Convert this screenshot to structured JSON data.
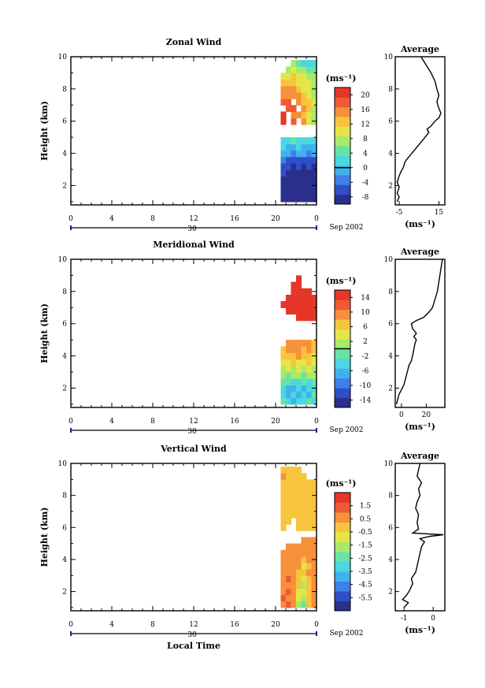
{
  "figure": {
    "x_axis_title": "Local Time",
    "y_axis_title": "Height (km)",
    "date_label": "Sep 2002",
    "day_label": "30",
    "unit_label": "(ms⁻¹)"
  },
  "chart_data": [
    {
      "type": "heatmap",
      "title": "Zonal Wind",
      "xlabel": "",
      "ylabel": "Height (km)",
      "x_ticks": [
        "0",
        "4",
        "8",
        "12",
        "16",
        "20",
        "0"
      ],
      "xlim": [
        0,
        24
      ],
      "y_ticks": [
        "2",
        "4",
        "6",
        "8",
        "10"
      ],
      "ylim": [
        0.8,
        10
      ],
      "data_x_range": [
        20.5,
        24
      ],
      "colorbar": {
        "unit": "(ms⁻¹)",
        "ticks": [
          "20",
          "16",
          "12",
          "8",
          "4",
          "0",
          "-4",
          "-8"
        ],
        "range": [
          -10,
          22
        ],
        "zero_line": true
      },
      "profile": {
        "title": "Average",
        "xlabel": "(ms⁻¹)",
        "x_ticks": [
          "-5",
          "15"
        ],
        "xlim": [
          -7,
          18
        ],
        "y_ticks": [
          "2",
          "4",
          "6",
          "8",
          "10"
        ],
        "points": [
          [
            -6,
            1.0
          ],
          [
            -5,
            1.3
          ],
          [
            -6,
            1.5
          ],
          [
            -5,
            1.9
          ],
          [
            -6,
            2.2
          ],
          [
            -5,
            2.6
          ],
          [
            -4,
            2.9
          ],
          [
            -3,
            3.1
          ],
          [
            -2,
            3.5
          ],
          [
            0,
            3.8
          ],
          [
            2,
            4.1
          ],
          [
            4,
            4.4
          ],
          [
            6,
            4.7
          ],
          [
            8,
            5.0
          ],
          [
            10,
            5.3
          ],
          [
            9,
            5.5
          ],
          [
            11,
            5.7
          ],
          [
            13,
            6.0
          ],
          [
            15,
            6.2
          ],
          [
            16,
            6.5
          ],
          [
            15,
            6.8
          ],
          [
            14,
            7.2
          ],
          [
            15,
            7.6
          ],
          [
            14,
            8.0
          ],
          [
            13,
            8.5
          ],
          [
            11,
            9.0
          ],
          [
            9,
            9.4
          ],
          [
            7,
            9.8
          ],
          [
            6,
            10.0
          ]
        ]
      },
      "heatmap": {
        "height_rows": [
          1.2,
          1.6,
          2.0,
          2.4,
          2.8,
          3.2,
          3.6,
          4.0,
          4.4,
          4.8,
          5.2,
          5.6,
          6.0,
          6.4,
          6.8,
          7.2,
          7.6,
          8.0,
          8.4,
          8.8,
          9.2,
          9.6
        ],
        "values": [
          [
            -8,
            -9,
            -8,
            -9,
            -8,
            -9,
            -8
          ],
          [
            -8,
            -8,
            -9,
            -8,
            -9,
            -8,
            -9
          ],
          [
            -9,
            -8,
            -8,
            -9,
            -8,
            -8,
            -8
          ],
          [
            -8,
            -9,
            -8,
            -8,
            -9,
            -8,
            -9
          ],
          [
            -7,
            -8,
            -9,
            -8,
            -8,
            -9,
            -8
          ],
          [
            -6,
            -7,
            -8,
            -7,
            -8,
            -7,
            -8
          ],
          [
            -4,
            -5,
            -6,
            -5,
            -6,
            -5,
            -6
          ],
          [
            -1,
            -2,
            -3,
            -2,
            -2,
            -3,
            -2
          ],
          [
            1,
            0,
            -1,
            1,
            0,
            -1,
            0
          ],
          [
            3,
            2,
            4,
            2,
            3,
            2,
            3
          ],
          [
            null,
            null,
            null,
            null,
            null,
            null,
            null
          ],
          [
            null,
            null,
            null,
            null,
            null,
            null,
            null
          ],
          [
            22,
            null,
            18,
            null,
            14,
            10,
            8
          ],
          [
            20,
            null,
            16,
            14,
            12,
            10,
            8
          ],
          [
            null,
            18,
            17,
            null,
            14,
            12,
            8
          ],
          [
            18,
            18,
            null,
            14,
            13,
            12,
            10
          ],
          [
            16,
            16,
            15,
            14,
            12,
            10,
            8
          ],
          [
            14,
            15,
            14,
            12,
            11,
            9,
            8
          ],
          [
            12,
            12,
            13,
            11,
            10,
            9,
            8
          ],
          [
            10,
            11,
            12,
            10,
            9,
            8,
            7
          ],
          [
            null,
            8,
            10,
            8,
            6,
            5,
            4
          ],
          [
            null,
            null,
            6,
            4,
            3,
            2,
            2
          ]
        ]
      }
    },
    {
      "type": "heatmap",
      "title": "Meridional Wind",
      "xlabel": "",
      "ylabel": "Height (km)",
      "x_ticks": [
        "0",
        "4",
        "8",
        "12",
        "16",
        "20",
        "0"
      ],
      "xlim": [
        0,
        24
      ],
      "y_ticks": [
        "2",
        "4",
        "6",
        "8",
        "10"
      ],
      "ylim": [
        0.8,
        10
      ],
      "data_x_range": [
        20.5,
        24
      ],
      "colorbar": {
        "unit": "(ms⁻¹)",
        "ticks": [
          "14",
          "10",
          "6",
          "2",
          "-2",
          "-6",
          "-10",
          "-14"
        ],
        "range": [
          -16,
          16
        ],
        "zero_line": true
      },
      "profile": {
        "title": "Average",
        "xlabel": "(ms⁻¹)",
        "x_ticks": [
          "0",
          "20"
        ],
        "xlim": [
          -5,
          35
        ],
        "y_ticks": [
          "2",
          "4",
          "6",
          "8",
          "10"
        ],
        "points": [
          [
            -4,
            1.0
          ],
          [
            -3,
            1.3
          ],
          [
            -2,
            1.6
          ],
          [
            0,
            1.9
          ],
          [
            2,
            2.2
          ],
          [
            3,
            2.5
          ],
          [
            4,
            2.8
          ],
          [
            5,
            3.1
          ],
          [
            6,
            3.4
          ],
          [
            8,
            3.7
          ],
          [
            9,
            4.0
          ],
          [
            10,
            4.4
          ],
          [
            11,
            4.8
          ],
          [
            12,
            5.0
          ],
          [
            10,
            5.2
          ],
          [
            12,
            5.4
          ],
          [
            9,
            5.7
          ],
          [
            8,
            6.0
          ],
          [
            12,
            6.2
          ],
          [
            18,
            6.4
          ],
          [
            22,
            6.7
          ],
          [
            25,
            7.0
          ],
          [
            27,
            7.5
          ],
          [
            29,
            8.0
          ],
          [
            30,
            8.5
          ],
          [
            31,
            9.0
          ],
          [
            32,
            9.5
          ],
          [
            33,
            10.0
          ]
        ]
      },
      "heatmap": {
        "height_rows": [
          1.2,
          1.6,
          2.0,
          2.4,
          2.8,
          3.2,
          3.6,
          4.0,
          4.4,
          4.8,
          5.2,
          5.6,
          6.0,
          6.4,
          6.8,
          7.2,
          7.6,
          8.0,
          8.4,
          8.8
        ],
        "values": [
          [
            -2,
            -4,
            -6,
            -3,
            -5,
            -2,
            -4
          ],
          [
            -4,
            -8,
            -5,
            -6,
            -3,
            -7,
            -2
          ],
          [
            -3,
            -6,
            -8,
            -4,
            -6,
            -5,
            -3
          ],
          [
            -1,
            -2,
            -4,
            -3,
            -1,
            -4,
            -2
          ],
          [
            1,
            -1,
            2,
            0,
            -2,
            1,
            0
          ],
          [
            2,
            3,
            1,
            4,
            2,
            3,
            1
          ],
          [
            4,
            5,
            6,
            5,
            4,
            6,
            5
          ],
          [
            6,
            7,
            6,
            8,
            7,
            6,
            5
          ],
          [
            7,
            8,
            9,
            8,
            7,
            8,
            6
          ],
          [
            null,
            9,
            10,
            9,
            8,
            9,
            7
          ],
          [
            null,
            null,
            null,
            null,
            null,
            null,
            null
          ],
          [
            null,
            null,
            null,
            null,
            null,
            null,
            null
          ],
          [
            null,
            null,
            null,
            null,
            null,
            null,
            null
          ],
          [
            null,
            null,
            null,
            16,
            17,
            16,
            15
          ],
          [
            null,
            17,
            16,
            17,
            18,
            17,
            16
          ],
          [
            16,
            17,
            18,
            17,
            16,
            17,
            17
          ],
          [
            null,
            16,
            17,
            18,
            17,
            16,
            17
          ],
          [
            null,
            null,
            17,
            16,
            17,
            16,
            null
          ],
          [
            null,
            null,
            16,
            17,
            null,
            null,
            null
          ],
          [
            null,
            null,
            null,
            16,
            null,
            null,
            null
          ]
        ]
      }
    },
    {
      "type": "heatmap",
      "title": "Vertical Wind",
      "xlabel": "Local Time",
      "ylabel": "Height (km)",
      "x_ticks": [
        "0",
        "4",
        "8",
        "12",
        "16",
        "20",
        "0"
      ],
      "xlim": [
        0,
        24
      ],
      "y_ticks": [
        "2",
        "4",
        "6",
        "8",
        "10"
      ],
      "ylim": [
        0.8,
        10
      ],
      "data_x_range": [
        20.5,
        24
      ],
      "colorbar": {
        "unit": "(ms⁻¹)",
        "ticks": [
          "1.5",
          "0.5",
          "-0.5",
          "-1.5",
          "-2.5",
          "-3.5",
          "-4.5",
          "-5.5"
        ],
        "range": [
          -6.5,
          2.5
        ],
        "zero_line": false
      },
      "profile": {
        "title": "Average",
        "xlabel": "(ms⁻¹)",
        "x_ticks": [
          "-1",
          "0"
        ],
        "xlim": [
          -1.3,
          0.4
        ],
        "y_ticks": [
          "2",
          "4",
          "6",
          "8",
          "10"
        ],
        "points": [
          [
            -1.0,
            1.0
          ],
          [
            -0.85,
            1.3
          ],
          [
            -1.05,
            1.5
          ],
          [
            -0.9,
            1.8
          ],
          [
            -0.8,
            2.1
          ],
          [
            -0.7,
            2.5
          ],
          [
            -0.75,
            2.8
          ],
          [
            -0.6,
            3.2
          ],
          [
            -0.55,
            3.6
          ],
          [
            -0.5,
            4.0
          ],
          [
            -0.45,
            4.4
          ],
          [
            -0.4,
            4.8
          ],
          [
            -0.3,
            5.1
          ],
          [
            -0.45,
            5.3
          ],
          [
            -0.1,
            5.45
          ],
          [
            0.35,
            5.55
          ],
          [
            -0.7,
            5.65
          ],
          [
            -0.5,
            5.9
          ],
          [
            -0.55,
            6.3
          ],
          [
            -0.5,
            6.8
          ],
          [
            -0.6,
            7.2
          ],
          [
            -0.55,
            7.6
          ],
          [
            -0.45,
            8.0
          ],
          [
            -0.5,
            8.4
          ],
          [
            -0.4,
            8.8
          ],
          [
            -0.55,
            9.2
          ],
          [
            -0.5,
            9.6
          ],
          [
            -0.45,
            10.0
          ]
        ]
      },
      "heatmap": {
        "height_rows": [
          1.2,
          1.6,
          2.0,
          2.4,
          2.8,
          3.2,
          3.6,
          4.0,
          4.4,
          4.8,
          5.2,
          5.6,
          6.0,
          6.4,
          6.8,
          7.2,
          7.6,
          8.0,
          8.4,
          8.8,
          9.2,
          9.6
        ],
        "values": [
          [
            0.8,
            1.0,
            0.3,
            -1.8,
            -2.5,
            0.2,
            0.5
          ],
          [
            1.0,
            0.8,
            0.5,
            -1.0,
            -2.0,
            0.0,
            0.4
          ],
          [
            0.5,
            1.2,
            0.8,
            -0.8,
            -1.2,
            0.2,
            0.6
          ],
          [
            0.9,
            0.6,
            0.4,
            -0.5,
            -1.5,
            -0.4,
            0.3
          ],
          [
            0.7,
            1.0,
            0.6,
            -0.2,
            -0.6,
            0.1,
            0.5
          ],
          [
            0.5,
            0.8,
            0.9,
            0.2,
            -0.4,
            0.3,
            0.6
          ],
          [
            0.9,
            0.6,
            0.7,
            0.4,
            -0.8,
            0.2,
            0.4
          ],
          [
            0.6,
            0.9,
            0.5,
            0.8,
            0.0,
            0.4,
            0.7
          ],
          [
            0.8,
            0.5,
            0.6,
            0.3,
            0.5,
            0.7,
            0.6
          ],
          [
            null,
            0.7,
            0.8,
            0.6,
            0.9,
            0.5,
            0.8
          ],
          [
            null,
            null,
            null,
            null,
            0.7,
            0.6,
            0.5
          ],
          [
            null,
            null,
            null,
            null,
            null,
            null,
            null
          ],
          [
            0.2,
            null,
            null,
            0.0,
            -0.3,
            -0.2,
            -0.1
          ],
          [
            0.1,
            0.0,
            null,
            -0.2,
            -0.4,
            -0.3,
            0.0
          ],
          [
            0.0,
            -0.1,
            0.1,
            -0.3,
            -0.2,
            -0.4,
            -0.1
          ],
          [
            -0.2,
            0.1,
            0.0,
            -0.1,
            -0.3,
            -0.2,
            0.1
          ],
          [
            0.1,
            -0.2,
            0.2,
            0.0,
            -0.4,
            -0.1,
            0.0
          ],
          [
            0.0,
            0.1,
            -0.1,
            0.2,
            -0.2,
            -0.3,
            0.1
          ],
          [
            -0.1,
            0.2,
            0.0,
            -0.2,
            0.0,
            -0.1,
            -0.2
          ],
          [
            0.2,
            0.0,
            0.1,
            -0.1,
            -0.2,
            0.0,
            0.1
          ],
          [
            0.3,
            0.1,
            -0.1,
            0.0,
            -0.3,
            null,
            null
          ],
          [
            0.2,
            0.2,
            0.0,
            0.1,
            null,
            null,
            null
          ]
        ]
      }
    }
  ]
}
